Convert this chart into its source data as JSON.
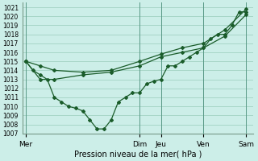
{
  "xlabel": "Pression niveau de la mer( hPa )",
  "background_color": "#cceee8",
  "grid_color": "#99ccbb",
  "line_color": "#1a5c2a",
  "ylim": [
    1007,
    1021.5
  ],
  "yticks": [
    1007,
    1008,
    1009,
    1010,
    1011,
    1012,
    1013,
    1014,
    1015,
    1016,
    1017,
    1018,
    1019,
    1020,
    1021
  ],
  "day_labels": [
    "Mer",
    "Dim",
    "Jeu",
    "Ven",
    "Sam"
  ],
  "day_positions": [
    0,
    16,
    19,
    25,
    31
  ],
  "xlim": [
    -0.5,
    32
  ],
  "vline_positions": [
    0,
    16,
    19,
    25,
    31
  ],
  "series1_x": [
    0,
    1,
    2,
    3,
    4,
    5,
    6,
    7,
    8,
    9,
    10,
    11,
    12,
    13,
    14,
    15,
    16,
    17,
    18,
    19,
    20,
    21,
    22,
    23,
    24,
    25,
    26,
    27,
    28,
    29,
    30,
    31
  ],
  "series1_y": [
    1015.0,
    1014.0,
    1013.5,
    1013.0,
    1011.0,
    1010.5,
    1010.0,
    1009.8,
    1009.5,
    1008.5,
    1007.5,
    1007.5,
    1008.5,
    1010.5,
    1011.0,
    1011.5,
    1011.5,
    1012.5,
    1012.8,
    1013.0,
    1014.5,
    1014.5,
    1015.0,
    1015.5,
    1016.0,
    1016.5,
    1017.5,
    1018.0,
    1018.0,
    1019.0,
    1020.5,
    1020.5
  ],
  "series2_x": [
    0,
    2,
    4,
    8,
    12,
    16,
    19,
    22,
    25,
    28,
    31
  ],
  "series2_y": [
    1015.0,
    1013.0,
    1013.0,
    1013.5,
    1013.8,
    1014.5,
    1015.5,
    1016.0,
    1016.5,
    1017.8,
    1020.2
  ],
  "series3_x": [
    0,
    2,
    4,
    8,
    12,
    16,
    19,
    22,
    25,
    28,
    31
  ],
  "series3_y": [
    1015.0,
    1014.5,
    1014.0,
    1013.8,
    1014.0,
    1015.0,
    1015.8,
    1016.5,
    1017.0,
    1018.5,
    1020.8
  ],
  "marker": "D",
  "markersize": 2.0,
  "linewidth": 0.9,
  "tick_fontsize": 5.5,
  "xlabel_fontsize": 7.0
}
